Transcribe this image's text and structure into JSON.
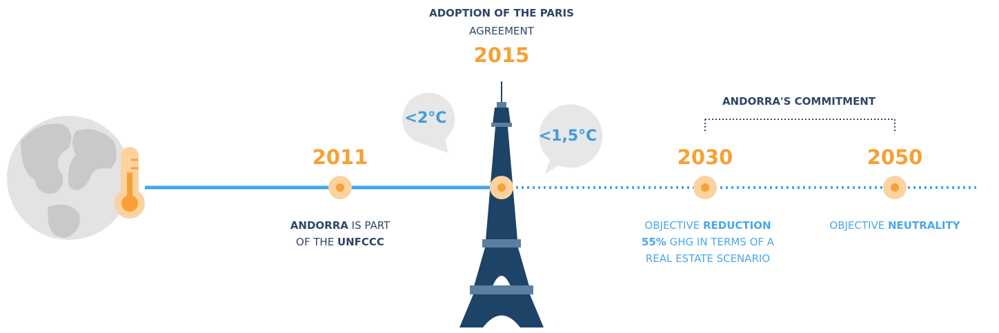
{
  "header": {
    "title": "ADOPTION OF THE PARIS",
    "subtitle": "AGREEMENT",
    "year": "2015"
  },
  "bubbles": [
    "<2°C",
    "<1,5°C"
  ],
  "commitment": "ANDORRA'S COMMITMENT",
  "milestones": [
    {
      "year": "2011",
      "caption": [
        [
          {
            "text": "ANDORRA",
            "bold": true
          },
          {
            "text": " IS PART"
          }
        ],
        [
          {
            "text": "OF THE "
          },
          {
            "text": "UNFCCC",
            "bold": true
          }
        ]
      ]
    },
    {
      "year": "2030",
      "caption": [
        [
          {
            "text": "OBJECTIVE "
          },
          {
            "text": "REDUCTION",
            "bold": true
          }
        ],
        [
          {
            "text": "55%",
            "bold": true
          },
          {
            "text": " GHG IN TERMS OF A"
          }
        ],
        [
          {
            "text": "REAL ESTATE SCENARIO"
          }
        ]
      ]
    },
    {
      "year": "2050",
      "caption": [
        [
          {
            "text": "OBJECTIVE "
          },
          {
            "text": "NEUTRALITY",
            "bold": true
          }
        ]
      ]
    }
  ]
}
